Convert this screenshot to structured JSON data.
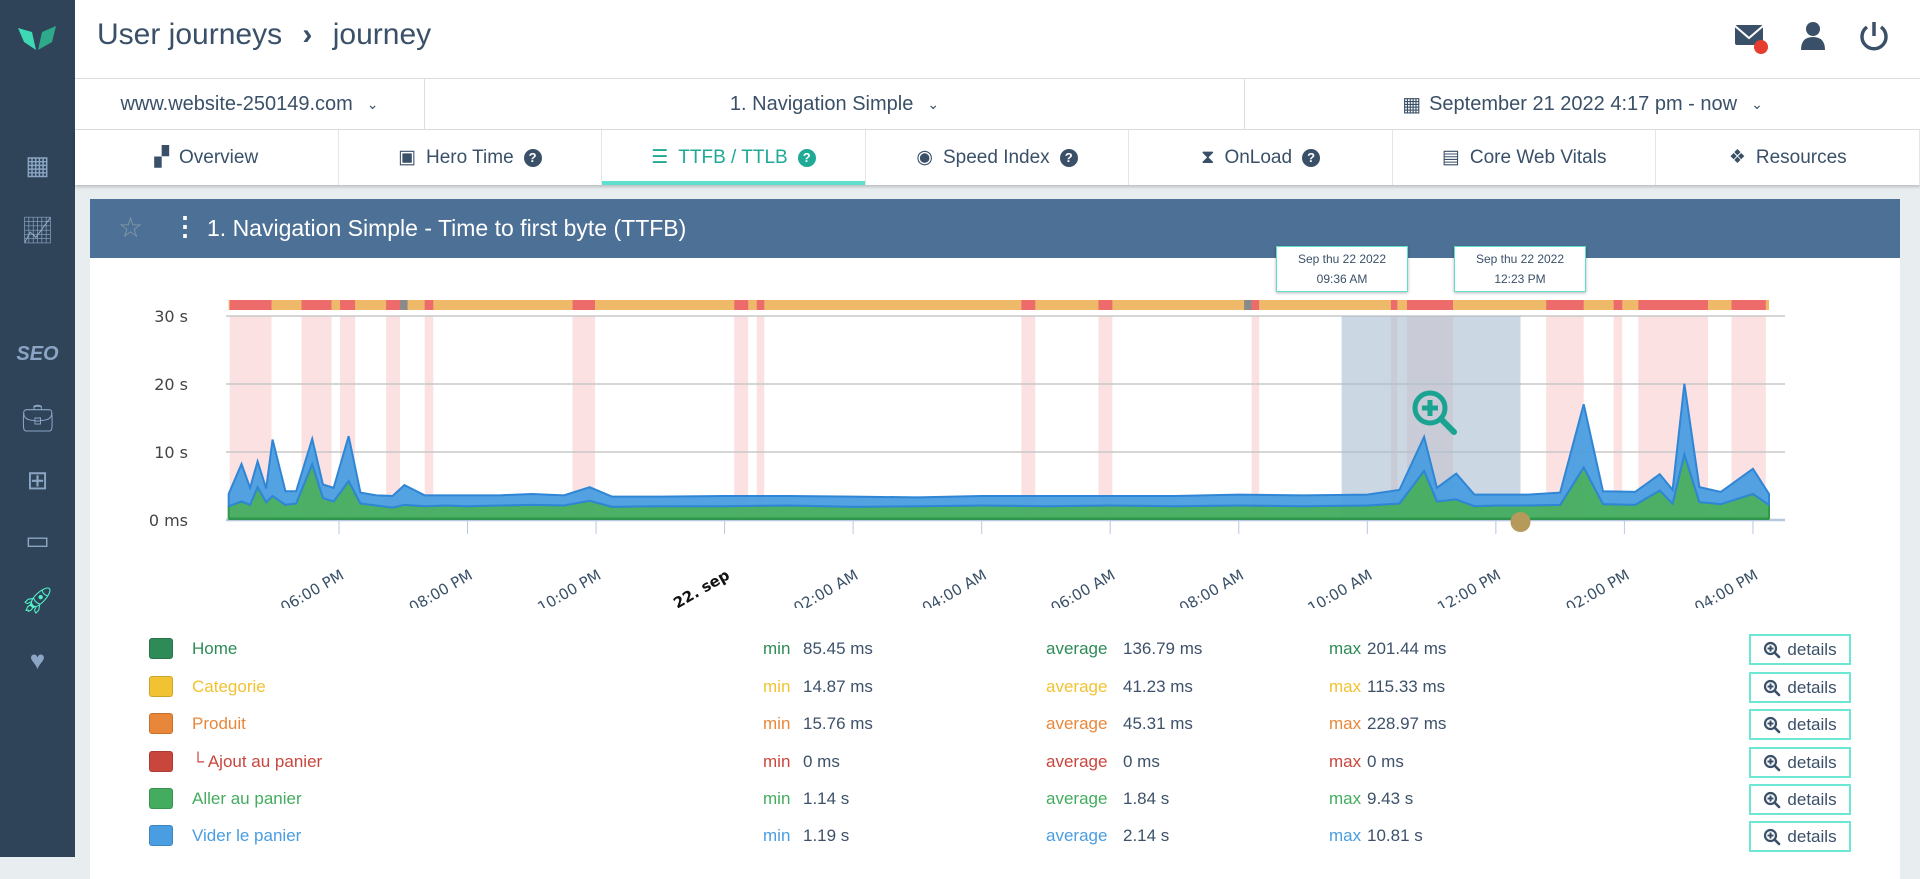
{
  "header": {
    "breadcrumb": [
      "User journeys",
      "journey"
    ],
    "separator": "›",
    "notification_dot_color": "#e53e30"
  },
  "sidebar": {
    "items": [
      "grid-icon",
      "chart-line-icon",
      "SEO",
      "briefcase-icon",
      "sitemap-icon",
      "server-icon",
      "rocket-icon",
      "heartbeat-icon"
    ],
    "seo_label": "SEO",
    "active": "rocket-icon"
  },
  "selectors": {
    "site": "www.website-250149.com",
    "journey": "1. Navigation Simple",
    "period": "September 21 2022 4:17 pm - now"
  },
  "tabs": [
    {
      "label": "Overview",
      "icon": "dashboard-icon"
    },
    {
      "label": "Hero Time",
      "icon": "image-icon",
      "help": "?"
    },
    {
      "label": "TTFB / TTLB",
      "icon": "server-icon",
      "help": "?",
      "active": true
    },
    {
      "label": "Speed Index",
      "icon": "eye-icon",
      "help": "?"
    },
    {
      "label": "OnLoad",
      "icon": "hourglass-icon",
      "help": "?"
    },
    {
      "label": "Core Web Vitals",
      "icon": "vitals-icon"
    },
    {
      "label": "Resources",
      "icon": "cubes-icon"
    }
  ],
  "panel": {
    "title": "1. Navigation Simple - Time to first byte (TTFB)"
  },
  "selection": {
    "start_label": [
      "Sep thu 22 2022",
      "09:36 AM"
    ],
    "end_label": [
      "Sep thu 22 2022",
      "12:23 PM"
    ],
    "start": "2022-09-22T09:36",
    "end": "2022-09-22T12:23"
  },
  "legend": [
    {
      "name": "Home",
      "color": "#2e8a57",
      "min": "85.45 ms",
      "average": "136.79 ms",
      "max": "201.44 ms"
    },
    {
      "name": "Categorie",
      "color": "#f1c232",
      "min": "14.87 ms",
      "average": "41.23 ms",
      "max": "115.33 ms"
    },
    {
      "name": "Produit",
      "color": "#e8873a",
      "min": "15.76 ms",
      "average": "45.31 ms",
      "max": "228.97 ms"
    },
    {
      "name": "└ Ajout au panier",
      "color": "#c9463d",
      "min": "0 ms",
      "average": "0 ms",
      "max": "0 ms"
    },
    {
      "name": "Aller au panier",
      "color": "#43ac5f",
      "min": "1.14 s",
      "average": "1.84 s",
      "max": "9.43 s"
    },
    {
      "name": "Vider le panier",
      "color": "#4a9de0",
      "min": "1.19 s",
      "average": "2.14 s",
      "max": "10.81 s"
    }
  ],
  "legend_labels": {
    "min": "min",
    "average": "average",
    "max": "max",
    "details": "details"
  },
  "chart_data": {
    "type": "area",
    "stacked": true,
    "ylim": [
      0,
      30
    ],
    "yticks": [
      "0 ms",
      "10 s",
      "20 s",
      "30 s"
    ],
    "grid": true,
    "xticks": [
      "06:00 PM",
      "08:00 PM",
      "10:00 PM",
      "22. sep",
      "02:00 AM",
      "04:00 AM",
      "06:00 AM",
      "08:00 AM",
      "10:00 AM",
      "12:00 PM",
      "02:00 PM",
      "04:00 PM"
    ],
    "x": [
      "2022-09-21T16:17",
      "2022-09-21T16:29",
      "2022-09-21T16:37",
      "2022-09-21T16:44",
      "2022-09-21T16:52",
      "2022-09-21T16:58",
      "2022-09-21T17:10",
      "2022-09-21T17:20",
      "2022-09-21T17:35",
      "2022-09-21T17:45",
      "2022-09-21T17:55",
      "2022-09-21T18:09",
      "2022-09-21T18:20",
      "2022-09-21T18:35",
      "2022-09-21T18:50",
      "2022-09-21T19:01",
      "2022-09-21T19:20",
      "2022-09-21T19:40",
      "2022-09-21T20:00",
      "2022-09-21T20:30",
      "2022-09-21T21:00",
      "2022-09-21T21:30",
      "2022-09-21T21:54",
      "2022-09-21T22:15",
      "2022-09-21T23:00",
      "2022-09-22T00:00",
      "2022-09-22T01:00",
      "2022-09-22T02:00",
      "2022-09-22T03:00",
      "2022-09-22T04:00",
      "2022-09-22T05:00",
      "2022-09-22T06:00",
      "2022-09-22T07:00",
      "2022-09-22T08:00",
      "2022-09-22T09:00",
      "2022-09-22T10:00",
      "2022-09-22T10:30",
      "2022-09-22T10:53",
      "2022-09-22T11:05",
      "2022-09-22T11:23",
      "2022-09-22T11:40",
      "2022-09-22T12:00",
      "2022-09-22T12:30",
      "2022-09-22T13:00",
      "2022-09-22T13:22",
      "2022-09-22T13:40",
      "2022-09-22T14:10",
      "2022-09-22T14:33",
      "2022-09-22T14:45",
      "2022-09-22T14:56",
      "2022-09-22T15:10",
      "2022-09-22T15:30",
      "2022-09-22T16:00",
      "2022-09-22T16:15"
    ],
    "series": [
      {
        "name": "Home",
        "unit": "s",
        "constant": 0.14
      },
      {
        "name": "Categorie",
        "unit": "s",
        "constant": 0.04
      },
      {
        "name": "Produit",
        "unit": "s",
        "constant": 0.05
      },
      {
        "name": "Ajout au panier",
        "unit": "s",
        "constant": 0
      },
      {
        "name": "Aller au panier",
        "unit": "s",
        "values": [
          1.8,
          2.5,
          2.0,
          4.6,
          2.4,
          3.3,
          2.0,
          2.2,
          8.0,
          3.0,
          2.5,
          5.5,
          2.2,
          1.9,
          1.6,
          2.0,
          1.8,
          1.9,
          1.8,
          1.9,
          2.0,
          1.9,
          2.6,
          1.7,
          1.8,
          1.8,
          1.9,
          1.7,
          1.8,
          1.9,
          1.8,
          1.9,
          1.8,
          1.9,
          1.8,
          1.9,
          2.2,
          7.0,
          2.5,
          2.8,
          1.8,
          1.9,
          1.9,
          2.0,
          7.5,
          2.1,
          2.0,
          4.1,
          2.2,
          9.4,
          2.4,
          2.1,
          3.6,
          2.0
        ]
      },
      {
        "name": "Vider le panier",
        "unit": "s",
        "values": [
          1.8,
          5.5,
          2.5,
          3.8,
          2.0,
          8.3,
          2.0,
          1.8,
          3.7,
          2.0,
          2.0,
          6.6,
          1.6,
          1.5,
          1.7,
          2.9,
          1.6,
          1.5,
          1.6,
          1.5,
          1.6,
          1.5,
          2.0,
          1.5,
          1.4,
          1.5,
          1.4,
          1.5,
          1.3,
          1.4,
          1.5,
          1.4,
          1.5,
          1.6,
          1.6,
          1.6,
          2.0,
          5.0,
          2.0,
          3.8,
          1.7,
          1.6,
          1.6,
          1.8,
          9.3,
          1.9,
          1.9,
          2.4,
          2.0,
          10.4,
          2.2,
          1.8,
          3.7,
          1.6
        ]
      }
    ],
    "status_bar": {
      "default_color": "#efb96a",
      "error_color": "#ee6b6b",
      "unknown_color": "#8a8a8a",
      "errors": [
        [
          "2022-09-21T16:18",
          "2022-09-21T16:57"
        ],
        [
          "2022-09-21T17:25",
          "2022-09-21T17:53"
        ],
        [
          "2022-09-21T18:01",
          "2022-09-21T18:15"
        ],
        [
          "2022-09-21T18:44",
          "2022-09-21T18:57"
        ],
        [
          "2022-09-21T19:20",
          "2022-09-21T19:28"
        ],
        [
          "2022-09-21T21:38",
          "2022-09-21T21:59"
        ],
        [
          "2022-09-22T00:09",
          "2022-09-22T00:22"
        ],
        [
          "2022-09-22T00:30",
          "2022-09-22T00:37"
        ],
        [
          "2022-09-22T04:37",
          "2022-09-22T04:50"
        ],
        [
          "2022-09-22T05:49",
          "2022-09-22T06:02"
        ],
        [
          "2022-09-22T08:12",
          "2022-09-22T08:19"
        ],
        [
          "2022-09-22T10:22",
          "2022-09-22T10:28"
        ],
        [
          "2022-09-22T10:37",
          "2022-09-22T11:20"
        ],
        [
          "2022-09-22T12:47",
          "2022-09-22T13:22"
        ],
        [
          "2022-09-22T13:50",
          "2022-09-22T13:58"
        ],
        [
          "2022-09-22T14:13",
          "2022-09-22T15:18"
        ],
        [
          "2022-09-22T15:40",
          "2022-09-22T16:12"
        ]
      ],
      "unknown": [
        [
          "2022-09-21T18:57",
          "2022-09-21T19:04"
        ],
        [
          "2022-09-22T08:05",
          "2022-09-22T08:12"
        ]
      ]
    }
  }
}
